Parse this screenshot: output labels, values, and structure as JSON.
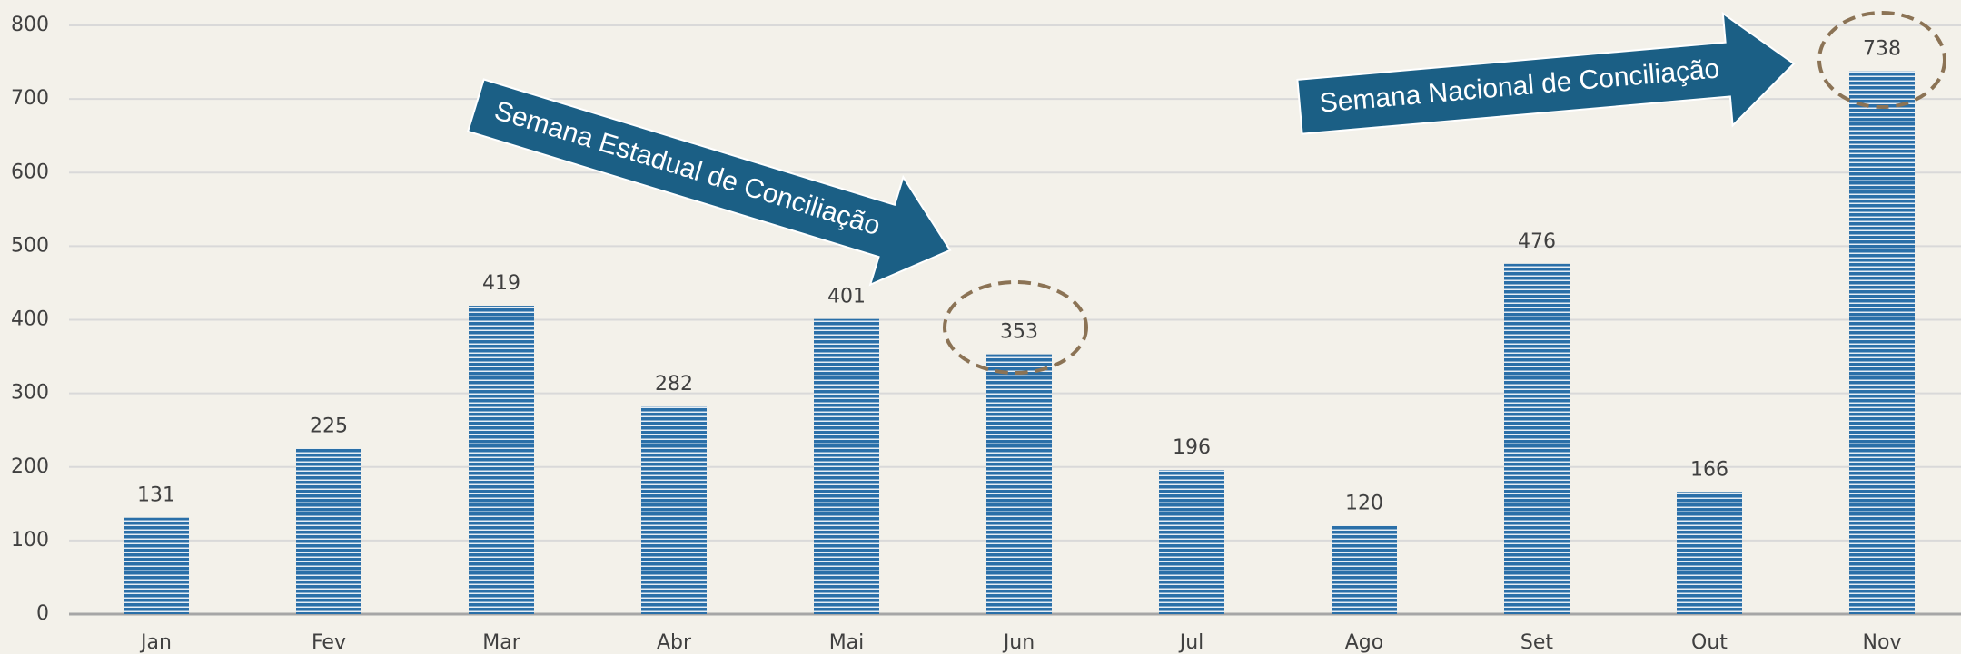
{
  "chart_data": {
    "type": "bar",
    "categories": [
      "Jan",
      "Fev",
      "Mar",
      "Abr",
      "Mai",
      "Jun",
      "Jul",
      "Ago",
      "Set",
      "Out",
      "Nov"
    ],
    "values": [
      131,
      225,
      419,
      282,
      401,
      353,
      196,
      120,
      476,
      166,
      738
    ],
    "color": "#2a6fa8",
    "ylim": [
      0,
      800
    ],
    "yticks": [
      0,
      100,
      200,
      300,
      400,
      500,
      600,
      700,
      800
    ],
    "grid": true,
    "annotations": [
      "Semana Estadual de Conciliação",
      "Semana Nacional de Conciliação"
    ]
  }
}
